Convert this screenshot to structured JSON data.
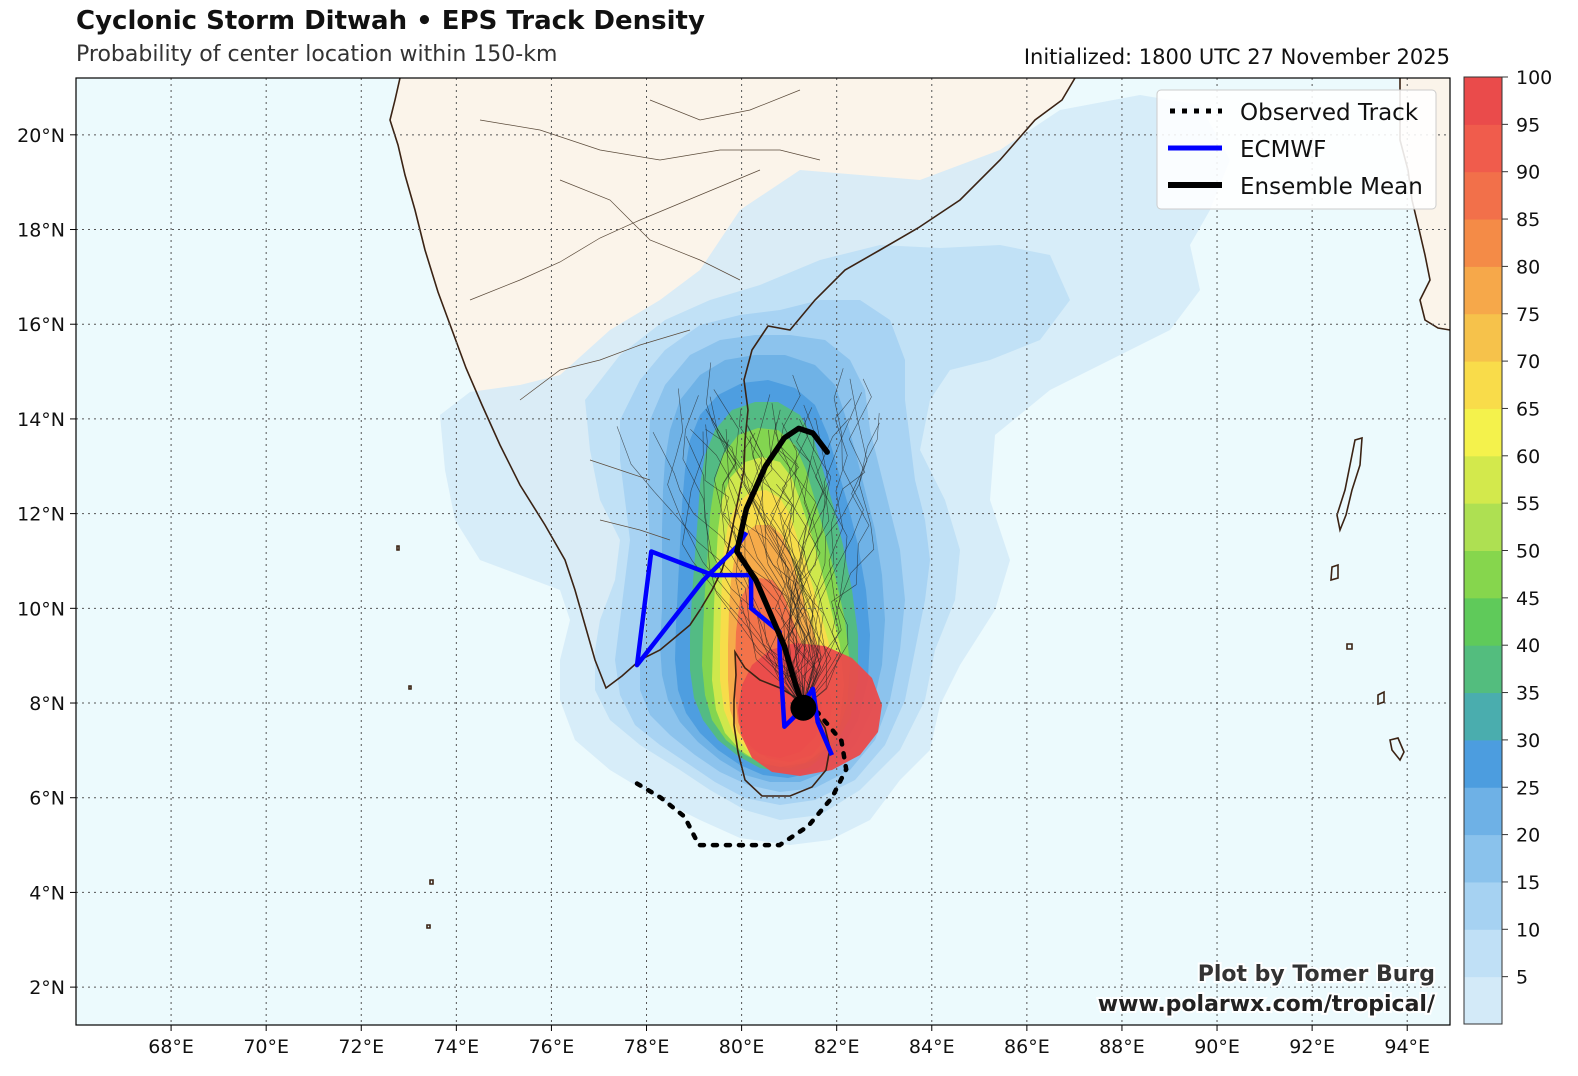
{
  "header": {
    "title": "Cyclonic Storm Ditwah • EPS Track Density",
    "subtitle": "Probability of center location within 150-km",
    "initialized": "Initialized: 1800 UTC 27 November 2025"
  },
  "map": {
    "lon_range": [
      66,
      94.9
    ],
    "lat_range": [
      1.2,
      21.2
    ],
    "lon_ticks": [
      "68°E",
      "70°E",
      "72°E",
      "74°E",
      "76°E",
      "78°E",
      "80°E",
      "82°E",
      "84°E",
      "86°E",
      "88°E",
      "90°E",
      "92°E",
      "94°E"
    ],
    "lat_ticks": [
      "2°N",
      "4°N",
      "6°N",
      "8°N",
      "10°N",
      "12°N",
      "14°N",
      "16°N",
      "18°N",
      "20°N"
    ],
    "tick_lons": [
      68,
      70,
      72,
      74,
      76,
      78,
      80,
      82,
      84,
      86,
      88,
      90,
      92,
      94
    ],
    "tick_lats": [
      2,
      4,
      6,
      8,
      10,
      12,
      14,
      16,
      18,
      20
    ],
    "ocean_color": "#ecfafd",
    "land_color": "#fbf4ea",
    "coast_color": "#3b2314",
    "current_position": {
      "lon": 81.3,
      "lat": 7.9
    }
  },
  "legend": {
    "items": [
      {
        "label": "Observed Track",
        "style": "dotted",
        "color": "#000000"
      },
      {
        "label": "ECMWF",
        "style": "solid",
        "color": "#0000ff"
      },
      {
        "label": "Ensemble Mean",
        "style": "solid",
        "color": "#000000"
      }
    ]
  },
  "tracks": {
    "observed": [
      [
        77.8,
        6.3
      ],
      [
        78.3,
        6.0
      ],
      [
        78.8,
        5.6
      ],
      [
        79.1,
        5.0
      ],
      [
        79.9,
        5.0
      ],
      [
        80.8,
        5.0
      ],
      [
        81.4,
        5.4
      ],
      [
        81.9,
        6.0
      ],
      [
        82.2,
        6.6
      ],
      [
        82.1,
        7.2
      ],
      [
        81.6,
        7.8
      ]
    ],
    "ecmwf": [
      [
        81.9,
        6.9
      ],
      [
        81.6,
        7.6
      ],
      [
        81.5,
        8.3
      ],
      [
        81.1,
        7.7
      ],
      [
        80.9,
        7.5
      ],
      [
        80.8,
        9.1
      ],
      [
        80.8,
        9.5
      ],
      [
        80.2,
        10.0
      ],
      [
        80.2,
        10.7
      ],
      [
        79.4,
        10.7
      ],
      [
        78.1,
        11.2
      ],
      [
        77.8,
        8.8
      ],
      [
        79.2,
        10.6
      ],
      [
        79.9,
        11.3
      ],
      [
        80.1,
        11.6
      ]
    ],
    "ensemble_mean": [
      [
        81.3,
        7.9
      ],
      [
        81.1,
        8.5
      ],
      [
        80.9,
        9.2
      ],
      [
        80.6,
        9.9
      ],
      [
        80.3,
        10.6
      ],
      [
        79.9,
        11.2
      ],
      [
        80.1,
        12.1
      ],
      [
        80.5,
        13.0
      ],
      [
        80.9,
        13.6
      ],
      [
        81.2,
        13.8
      ],
      [
        81.5,
        13.7
      ],
      [
        81.8,
        13.3
      ]
    ]
  },
  "colorbar": {
    "levels": [
      5,
      10,
      15,
      20,
      25,
      30,
      35,
      40,
      45,
      50,
      55,
      60,
      65,
      70,
      75,
      80,
      85,
      90,
      95,
      100
    ],
    "labels": [
      "5",
      "10",
      "15",
      "20",
      "25",
      "30",
      "35",
      "40",
      "45",
      "50",
      "55",
      "60",
      "65",
      "70",
      "75",
      "80",
      "85",
      "90",
      "95",
      "100"
    ],
    "colors": [
      "#d3eaf8",
      "#c0e0f6",
      "#a6d2f2",
      "#8ac2ec",
      "#6eb1e6",
      "#4c9ddf",
      "#4aadae",
      "#53bd7e",
      "#5fca5a",
      "#86d64d",
      "#aee052",
      "#d3e94c",
      "#f4f24c",
      "#f9dc4a",
      "#f6c24b",
      "#f6a84a",
      "#f48b47",
      "#f2704a",
      "#f05c4c",
      "#ea4b4b"
    ]
  },
  "credit": {
    "line1": "Plot by Tomer Burg",
    "line2": "www.polarwx.com/tropical/"
  }
}
